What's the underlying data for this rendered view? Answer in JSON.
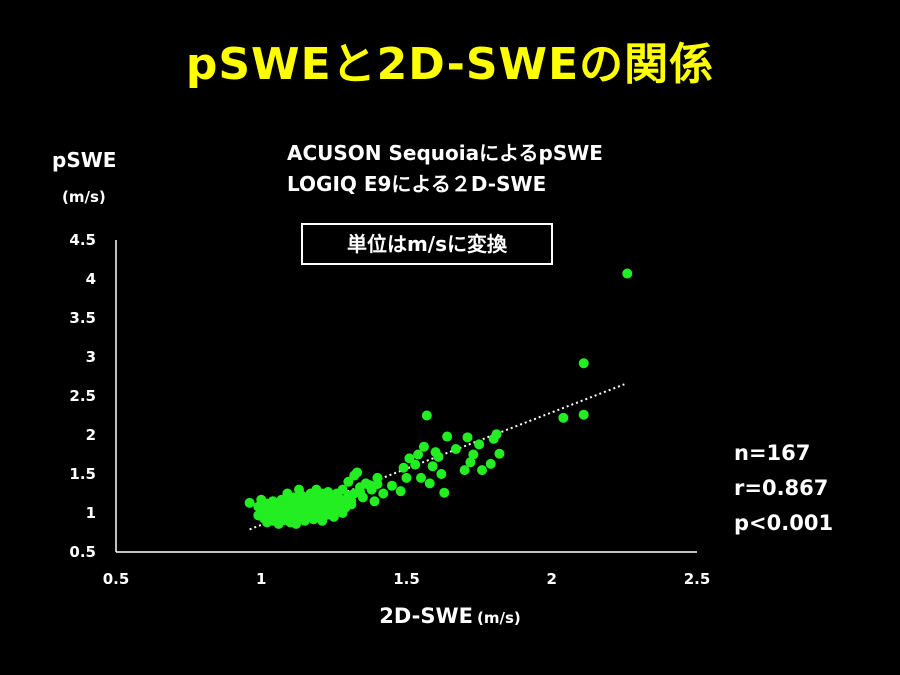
{
  "title": "pSWEと2D-SWEの関係",
  "annotation": {
    "line1": "ACUSON SequoiaによるpSWE",
    "line2": "LOGIQ E9による２D-SWE",
    "box": "単位はm/sに変換"
  },
  "stats": {
    "n": "n=167",
    "r": "r=0.867",
    "p": "p<0.001"
  },
  "colors": {
    "background": "#000000",
    "title": "#ffff00",
    "points": "#22ee22",
    "trendline": "#ffffff"
  },
  "chart_data": {
    "type": "scatter",
    "title": "pSWEと2D-SWEの関係",
    "xlabel": "2D-SWE",
    "xlabel_unit": "(m/s)",
    "ylabel": "pSWE",
    "ylabel_unit": "(m/s)",
    "xlim": [
      0.5,
      2.5
    ],
    "ylim": [
      0.5,
      4.5
    ],
    "xticks": [
      "0.5",
      "1",
      "1.5",
      "2",
      "2.5"
    ],
    "yticks": [
      "0.5",
      "1",
      "1.5",
      "2",
      "2.5",
      "3",
      "3.5",
      "4",
      "4.5"
    ],
    "grid": false,
    "trendline": {
      "style": "dotted",
      "x": [
        0.96,
        2.25
      ],
      "y": [
        0.79,
        2.65
      ]
    },
    "points": [
      [
        0.96,
        1.13
      ],
      [
        0.99,
        0.97
      ],
      [
        1.0,
        1.1
      ],
      [
        1.0,
        1.17
      ],
      [
        1.01,
        0.93
      ],
      [
        1.01,
        1.05
      ],
      [
        1.02,
        0.88
      ],
      [
        1.02,
        1.0
      ],
      [
        1.02,
        1.12
      ],
      [
        1.03,
        1.08
      ],
      [
        1.03,
        0.95
      ],
      [
        1.04,
        1.03
      ],
      [
        1.04,
        1.15
      ],
      [
        1.04,
        0.9
      ],
      [
        1.05,
        0.98
      ],
      [
        1.05,
        1.1
      ],
      [
        1.06,
        1.0
      ],
      [
        1.06,
        0.86
      ],
      [
        1.07,
        1.05
      ],
      [
        1.07,
        1.17
      ],
      [
        1.07,
        0.93
      ],
      [
        1.08,
        1.02
      ],
      [
        1.08,
        1.12
      ],
      [
        1.09,
        0.96
      ],
      [
        1.09,
        1.08
      ],
      [
        1.09,
        1.25
      ],
      [
        1.1,
        0.88
      ],
      [
        1.1,
        1.0
      ],
      [
        1.1,
        1.15
      ],
      [
        1.11,
        1.05
      ],
      [
        1.11,
        0.93
      ],
      [
        1.11,
        1.2
      ],
      [
        1.12,
        0.98
      ],
      [
        1.12,
        1.1
      ],
      [
        1.12,
        0.86
      ],
      [
        1.13,
        1.03
      ],
      [
        1.13,
        1.14
      ],
      [
        1.13,
        1.3
      ],
      [
        1.14,
        0.95
      ],
      [
        1.14,
        1.08
      ],
      [
        1.14,
        1.22
      ],
      [
        1.15,
        1.0
      ],
      [
        1.15,
        0.9
      ],
      [
        1.15,
        1.12
      ],
      [
        1.16,
        1.05
      ],
      [
        1.16,
        1.18
      ],
      [
        1.16,
        0.95
      ],
      [
        1.17,
        1.02
      ],
      [
        1.17,
        1.1
      ],
      [
        1.17,
        1.25
      ],
      [
        1.18,
        0.92
      ],
      [
        1.18,
        1.06
      ],
      [
        1.18,
        1.15
      ],
      [
        1.19,
        1.0
      ],
      [
        1.19,
        1.2
      ],
      [
        1.19,
        1.3
      ],
      [
        1.2,
        0.95
      ],
      [
        1.2,
        1.08
      ],
      [
        1.2,
        1.14
      ],
      [
        1.21,
        1.02
      ],
      [
        1.21,
        1.25
      ],
      [
        1.21,
        0.9
      ],
      [
        1.22,
        1.1
      ],
      [
        1.22,
        1.05
      ],
      [
        1.22,
        1.17
      ],
      [
        1.23,
        0.98
      ],
      [
        1.23,
        1.12
      ],
      [
        1.23,
        1.27
      ],
      [
        1.24,
        1.0
      ],
      [
        1.24,
        1.2
      ],
      [
        1.25,
        1.07
      ],
      [
        1.25,
        0.95
      ],
      [
        1.25,
        1.15
      ],
      [
        1.26,
        1.03
      ],
      [
        1.26,
        1.25
      ],
      [
        1.27,
        1.1
      ],
      [
        1.27,
        1.18
      ],
      [
        1.28,
        1.0
      ],
      [
        1.28,
        1.3
      ],
      [
        1.29,
        1.12
      ],
      [
        1.3,
        1.22
      ],
      [
        1.3,
        1.4
      ],
      [
        1.31,
        1.15
      ],
      [
        1.32,
        1.25
      ],
      [
        1.32,
        1.48
      ],
      [
        1.33,
        1.52
      ],
      [
        1.34,
        1.33
      ],
      [
        1.35,
        1.2
      ],
      [
        1.36,
        1.38
      ],
      [
        1.38,
        1.3
      ],
      [
        1.39,
        1.15
      ],
      [
        1.4,
        1.45
      ],
      [
        1.4,
        1.37
      ],
      [
        1.42,
        1.25
      ],
      [
        1.45,
        1.35
      ],
      [
        1.48,
        1.28
      ],
      [
        1.49,
        1.58
      ],
      [
        1.5,
        1.45
      ],
      [
        1.51,
        1.7
      ],
      [
        1.53,
        1.62
      ],
      [
        1.54,
        1.75
      ],
      [
        1.55,
        1.45
      ],
      [
        1.56,
        1.85
      ],
      [
        1.57,
        2.25
      ],
      [
        1.58,
        1.38
      ],
      [
        1.59,
        1.6
      ],
      [
        1.6,
        1.78
      ],
      [
        1.61,
        1.72
      ],
      [
        1.62,
        1.5
      ],
      [
        1.63,
        1.26
      ],
      [
        1.64,
        1.98
      ],
      [
        1.67,
        1.82
      ],
      [
        1.7,
        1.55
      ],
      [
        1.71,
        1.97
      ],
      [
        1.72,
        1.65
      ],
      [
        1.73,
        1.75
      ],
      [
        1.75,
        1.88
      ],
      [
        1.76,
        1.55
      ],
      [
        1.79,
        1.63
      ],
      [
        1.8,
        1.95
      ],
      [
        1.81,
        2.01
      ],
      [
        1.82,
        1.76
      ],
      [
        2.04,
        2.22
      ],
      [
        2.11,
        2.92
      ],
      [
        2.11,
        2.26
      ],
      [
        2.26,
        4.07
      ],
      [
        1.03,
        0.99
      ],
      [
        1.04,
        1.01
      ],
      [
        1.05,
        1.06
      ],
      [
        1.06,
        0.94
      ],
      [
        1.08,
        0.91
      ],
      [
        1.09,
        1.04
      ],
      [
        1.1,
        1.09
      ],
      [
        1.12,
        1.02
      ],
      [
        1.13,
        0.92
      ],
      [
        1.14,
        1.16
      ],
      [
        1.15,
        1.06
      ],
      [
        1.16,
        1.0
      ],
      [
        1.17,
        0.96
      ],
      [
        1.18,
        1.22
      ],
      [
        1.19,
        1.09
      ],
      [
        1.2,
        1.02
      ],
      [
        1.21,
        1.13
      ],
      [
        1.22,
        0.97
      ],
      [
        1.23,
        1.06
      ],
      [
        1.24,
        1.12
      ],
      [
        1.26,
        1.09
      ],
      [
        1.27,
        1.04
      ],
      [
        1.28,
        1.16
      ],
      [
        1.29,
        1.07
      ],
      [
        1.31,
        1.11
      ],
      [
        1.02,
        1.06
      ],
      [
        1.0,
        1.02
      ],
      [
        0.99,
        1.08
      ],
      [
        1.05,
        1.13
      ],
      [
        1.07,
        1.1
      ],
      [
        1.11,
        1.13
      ],
      [
        1.13,
        1.08
      ],
      [
        1.15,
        1.17
      ],
      [
        1.17,
        1.14
      ],
      [
        1.19,
        1.04
      ],
      [
        1.21,
        1.08
      ],
      [
        1.24,
        1.06
      ],
      [
        1.25,
        1.22
      ],
      [
        1.3,
        1.18
      ],
      [
        1.34,
        1.27
      ],
      [
        1.37,
        1.36
      ]
    ]
  }
}
